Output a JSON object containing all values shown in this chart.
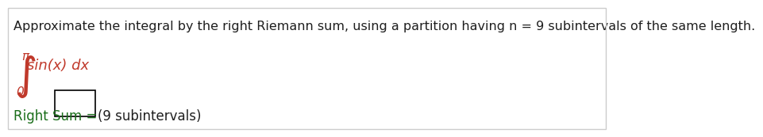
{
  "title": "Approximate the integral by the right Riemann sum, using a partition having n = 9 subintervals of the same length.",
  "title_color": "#1F1F1F",
  "title_fontsize": 11.5,
  "integral_color": "#C0392B",
  "integral_text": "sin(x) dx",
  "integral_lower": "0",
  "integral_upper": "π",
  "label_color": "#1a6e1a",
  "label_text": "Right Sum =",
  "subinterval_text": "(9 subintervals)",
  "background_color": "#FFFFFF",
  "border_color": "#CCCCCC",
  "box_color": "#000000",
  "fig_width": 7.53,
  "fig_height": 1.53
}
